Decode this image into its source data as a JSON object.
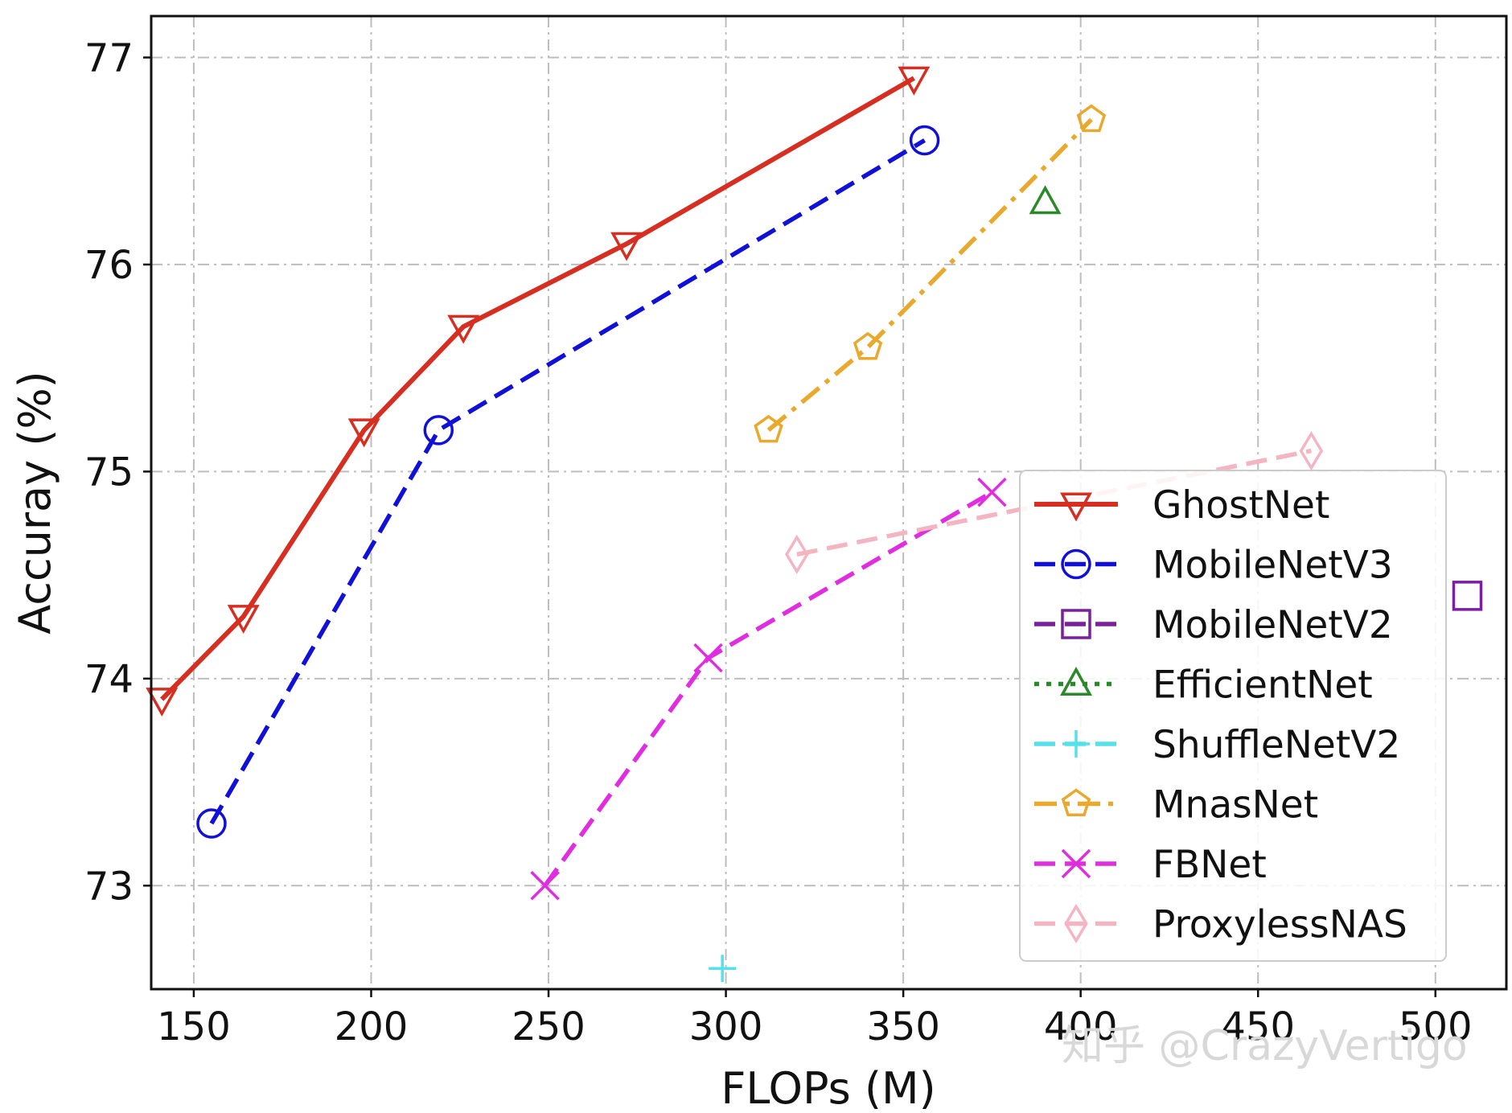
{
  "chart_data": {
    "type": "line",
    "xlabel": "FLOPs (M)",
    "ylabel": "Accuray (%)",
    "xlim": [
      138,
      520
    ],
    "ylim": [
      72.5,
      77.2
    ],
    "xticks": [
      150,
      200,
      250,
      300,
      350,
      400,
      450,
      500
    ],
    "yticks": [
      73,
      74,
      75,
      76,
      77
    ],
    "grid": true,
    "legend_position": "lower-right",
    "series": [
      {
        "name": "GhostNet",
        "color": "#d62e21",
        "linestyle": "solid",
        "marker": "triangle-down",
        "x": [
          141,
          164,
          198,
          226,
          272,
          353
        ],
        "y": [
          73.9,
          74.3,
          75.2,
          75.7,
          76.1,
          76.9
        ]
      },
      {
        "name": "MobileNetV3",
        "color": "#1010d8",
        "linestyle": "dashed",
        "marker": "circle",
        "x": [
          155,
          219,
          356
        ],
        "y": [
          73.3,
          75.2,
          76.6
        ]
      },
      {
        "name": "MobileNetV2",
        "color": "#7b1fa2",
        "linestyle": "dashed",
        "marker": "square",
        "x": [
          509
        ],
        "y": [
          74.4
        ]
      },
      {
        "name": "EfficientNet",
        "color": "#2a8a2a",
        "linestyle": "dotted",
        "marker": "triangle-up",
        "x": [
          390
        ],
        "y": [
          76.3
        ]
      },
      {
        "name": "ShuffleNetV2",
        "color": "#56e0ea",
        "linestyle": "dashed",
        "marker": "plus",
        "x": [
          299
        ],
        "y": [
          72.6
        ]
      },
      {
        "name": "MnasNet",
        "color": "#e8a92c",
        "linestyle": "dashdot",
        "marker": "pentagon",
        "x": [
          312,
          340,
          403
        ],
        "y": [
          75.2,
          75.6,
          76.7
        ]
      },
      {
        "name": "FBNet",
        "color": "#e02de0",
        "linestyle": "dashed",
        "marker": "x",
        "x": [
          249,
          295,
          375
        ],
        "y": [
          73.0,
          74.1,
          74.9
        ]
      },
      {
        "name": "ProxylessNAS",
        "color": "#f4b5c2",
        "linestyle": "dashed",
        "marker": "diamond",
        "x": [
          320,
          465
        ],
        "y": [
          74.6,
          75.1
        ]
      }
    ]
  },
  "watermark": "知乎 @CrazyVertigo"
}
